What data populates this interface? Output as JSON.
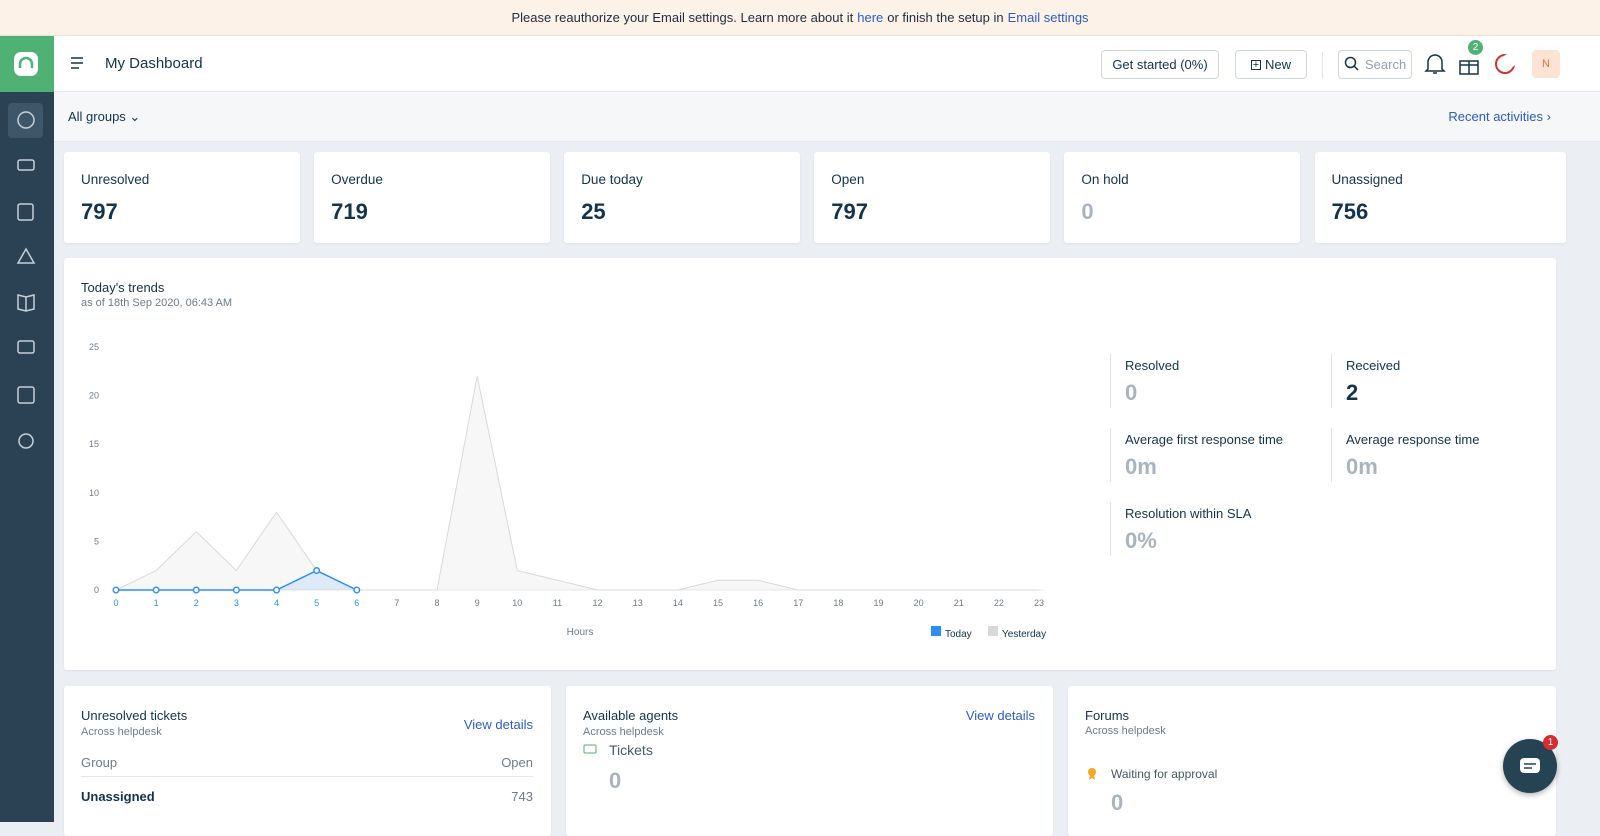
{
  "banner": {
    "text_before": "Please reauthorize your Email settings. Learn more about it",
    "link_here": "here",
    "text_middle": "or finish the setup in",
    "link_settings": "Email settings"
  },
  "header": {
    "title": "My Dashboard",
    "get_started": "Get started (0%)",
    "new_button": "New",
    "search_placeholder": "Search",
    "gift_badge": 2,
    "avatar": "N"
  },
  "filter_bar": {
    "groups": "All groups",
    "recent": "Recent activities"
  },
  "cards": [
    {
      "label": "Unresolved",
      "value": 797
    },
    {
      "label": "Overdue",
      "value": 719
    },
    {
      "label": "Due today",
      "value": 25
    },
    {
      "label": "Open",
      "value": 797
    },
    {
      "label": "On hold",
      "value": 0,
      "muted": true
    },
    {
      "label": "Unassigned",
      "value": 756
    }
  ],
  "chart_data": {
    "type": "line",
    "title": "Today's trends",
    "subtitle": "as of 18th Sep 2020, 06:43 AM",
    "x_label": "Hours",
    "categories": [
      "0",
      "1",
      "2",
      "3",
      "4",
      "5",
      "6",
      "7",
      "8",
      "9",
      "10",
      "11",
      "12",
      "13",
      "14",
      "15",
      "16",
      "17",
      "18",
      "19",
      "20",
      "21",
      "22",
      "23"
    ],
    "series": [
      {
        "name": "Today",
        "color": "#2c8ef8",
        "values": [
          0,
          0,
          0,
          0,
          0,
          2,
          0,
          null,
          null,
          null,
          null,
          null,
          null,
          null,
          null,
          null,
          null,
          null,
          null,
          null,
          null,
          null,
          null,
          null
        ]
      },
      {
        "name": "Yesterday",
        "color": "#d9d9d9",
        "values": [
          0,
          2,
          6,
          2,
          8,
          2,
          0,
          0,
          0,
          22,
          2,
          1,
          0,
          0,
          0,
          1,
          1,
          0,
          0,
          0,
          0,
          0,
          0,
          0
        ]
      }
    ],
    "ylim": [
      0,
      25
    ],
    "yticks": [
      0,
      5,
      10,
      15,
      20,
      25
    ],
    "grid": false
  },
  "stats": [
    {
      "label": "Resolved",
      "value": "0",
      "muted": true
    },
    {
      "label": "Received",
      "value": "2"
    },
    {
      "label": "Average first response time",
      "value": "0m",
      "muted": true
    },
    {
      "label": "Average response time",
      "value": "0m",
      "muted": true
    },
    {
      "label": "Resolution within SLA",
      "value": "0%",
      "muted": true
    }
  ],
  "panels": {
    "unresolved": {
      "title": "Unresolved tickets",
      "subtitle": "Across helpdesk",
      "link": "View details",
      "columns": [
        "Group",
        "Open"
      ],
      "rows": [
        [
          "Unassigned",
          743
        ]
      ]
    },
    "agents": {
      "title": "Available agents",
      "subtitle": "Across helpdesk",
      "link": "View details",
      "metric": "Tickets",
      "value": 0
    },
    "forums": {
      "title": "Forums",
      "subtitle": "Across helpdesk",
      "item": "Waiting for approval",
      "value": 0
    }
  },
  "chat_badge": 1
}
